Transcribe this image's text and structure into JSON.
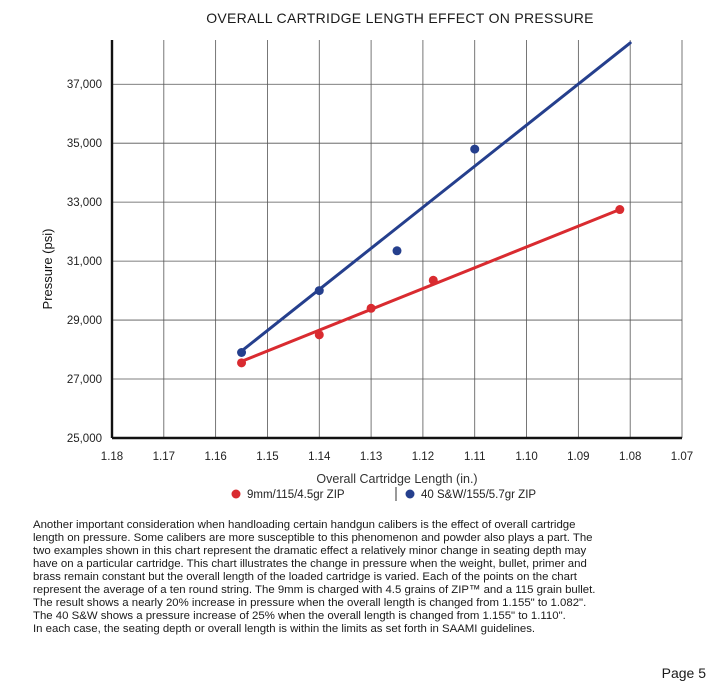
{
  "chart_data": {
    "type": "line",
    "title": "OVERALL CARTRIDGE LENGTH EFFECT ON PRESSURE",
    "xlabel": "Overall Cartridge Length (in.)",
    "ylabel": "Pressure (psi)",
    "xlim": [
      1.18,
      1.07
    ],
    "ylim": [
      25000,
      38500
    ],
    "x_reversed": true,
    "x_ticks": [
      "1.18",
      "1.17",
      "1.16",
      "1.15",
      "1.14",
      "1.13",
      "1.12",
      "1.11",
      "1.10",
      "1.09",
      "1.08",
      "1.07"
    ],
    "x_tick_values": [
      1.18,
      1.17,
      1.16,
      1.15,
      1.14,
      1.13,
      1.12,
      1.11,
      1.1,
      1.09,
      1.08,
      1.07
    ],
    "y_ticks": [
      "25,000",
      "27,000",
      "29,000",
      "31,000",
      "33,000",
      "35,000",
      "37,000"
    ],
    "y_tick_values": [
      25000,
      27000,
      29000,
      31000,
      33000,
      35000,
      37000
    ],
    "grid": true,
    "legend_position": "bottom",
    "series": [
      {
        "name": "9mm/115/4.5gr ZIP",
        "color": "#d92b30",
        "points": [
          {
            "x": 1.155,
            "y": 27550
          },
          {
            "x": 1.14,
            "y": 28500
          },
          {
            "x": 1.13,
            "y": 29400
          },
          {
            "x": 1.118,
            "y": 30350
          },
          {
            "x": 1.082,
            "y": 32750
          }
        ],
        "fit": [
          {
            "x": 1.155,
            "y": 27600
          },
          {
            "x": 1.082,
            "y": 32750
          }
        ]
      },
      {
        "name": "40 S&W/155/5.7gr ZIP",
        "color": "#253f8d",
        "points": [
          {
            "x": 1.155,
            "y": 27900
          },
          {
            "x": 1.14,
            "y": 30000
          },
          {
            "x": 1.125,
            "y": 31350
          },
          {
            "x": 1.11,
            "y": 34800
          }
        ],
        "fit": [
          {
            "x": 1.155,
            "y": 27950
          },
          {
            "x": 1.08,
            "y": 38400
          }
        ]
      }
    ]
  },
  "paragraph": "Another important consideration when handloading certain handgun calibers is the effect of overall cartridge\nlength on pressure. Some calibers are more susceptible to this phenomenon and powder also plays a part. The\ntwo examples shown in this chart represent the dramatic effect a relatively minor change in seating depth may\nhave on a particular cartridge. This chart illustrates the change in pressure when the weight, bullet, primer and\nbrass remain constant but the overall length of the loaded cartridge is varied. Each of the points on the chart\nrepresent the average of a ten round string. The 9mm is charged with 4.5 grains of ZIP™ and a 115 grain bullet.\nThe result shows a nearly 20% increase in pressure when the overall length is changed from 1.155\" to 1.082\".\nThe 40 S&W shows a pressure increase of 25% when the overall length is changed from 1.155\" to 1.110\".\nIn each case, the seating depth or overall length is within the limits as set forth in SAAMI guidelines.",
  "page_label": "Page 5"
}
